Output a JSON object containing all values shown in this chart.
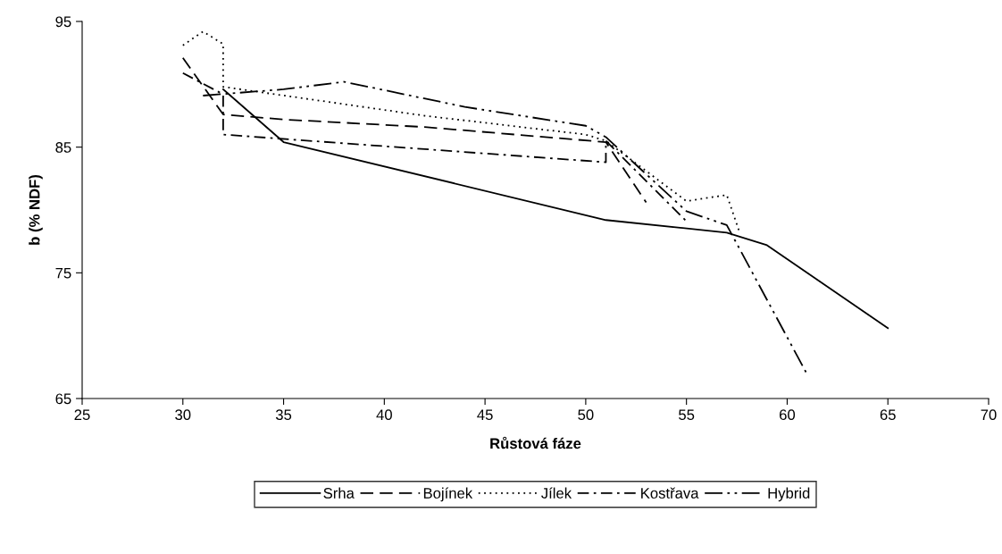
{
  "chart_data": {
    "type": "line",
    "xlabel": "Růstová fáze",
    "ylabel": "b (% NDF)",
    "xlim": [
      25,
      70
    ],
    "xticks": [
      25,
      30,
      35,
      40,
      45,
      50,
      55,
      60,
      65,
      70
    ],
    "ylim": [
      65,
      95
    ],
    "yticks": [
      65,
      75,
      85,
      95
    ],
    "grid": false,
    "legend": "bottom",
    "marker": "none",
    "series": [
      {
        "name": "Srha",
        "color": "#000000",
        "line_style": "solid",
        "x": [
          32,
          35,
          51,
          57,
          59,
          65
        ],
        "values": [
          89.6,
          85.4,
          79.2,
          78.2,
          77.2,
          70.6
        ]
      },
      {
        "name": "Bojínek",
        "color": "#000000",
        "line_style": "dashed",
        "x": [
          30,
          32,
          35,
          42,
          51,
          53
        ],
        "values": [
          92.1,
          87.6,
          87.2,
          86.6,
          85.4,
          80.6
        ]
      },
      {
        "name": "Jílek",
        "color": "#000000",
        "line_style": "dotted",
        "x": [
          30,
          31,
          32,
          32,
          42,
          50,
          51,
          55,
          57,
          57.6
        ],
        "values": [
          93.1,
          94.2,
          93.2,
          89.8,
          87.5,
          86.0,
          85.5,
          80.7,
          81.2,
          78.4
        ]
      },
      {
        "name": "Kostřava",
        "color": "#000000",
        "line_style": "dashdot",
        "x": [
          30,
          32,
          32,
          51,
          51,
          55
        ],
        "values": [
          90.9,
          89.2,
          86.0,
          83.8,
          85.5,
          79.1
        ]
      },
      {
        "name": "Hybrid",
        "color": "#000000",
        "line_style": "longdashdot",
        "x": [
          31,
          35,
          38,
          44,
          50,
          51,
          55,
          57,
          61
        ],
        "values": [
          89.1,
          89.6,
          90.2,
          88.2,
          86.7,
          85.8,
          79.9,
          78.8,
          66.9
        ]
      }
    ]
  }
}
